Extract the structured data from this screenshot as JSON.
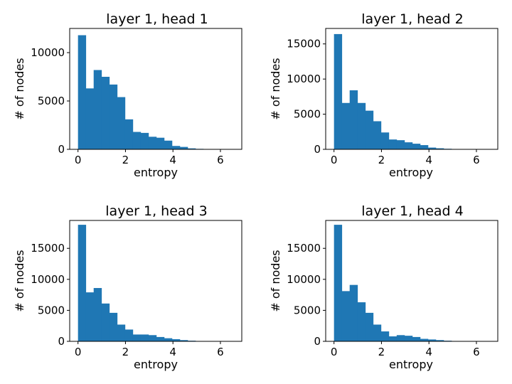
{
  "chart_data": [
    {
      "type": "bar",
      "title": "layer 1, head 1",
      "xlabel": "entropy",
      "ylabel": "# of nodes",
      "xlim": [
        -0.35,
        6.9
      ],
      "ylim": [
        0,
        12500
      ],
      "xticks": [
        0,
        2,
        4,
        6
      ],
      "yticks": [
        0,
        5000,
        10000
      ],
      "grid": false,
      "bin_start": 0.0,
      "bin_width": 0.33,
      "color": "#1f77b4",
      "values": [
        11800,
        6300,
        8200,
        7500,
        6700,
        5400,
        3100,
        1800,
        1700,
        1300,
        1200,
        900,
        350,
        250,
        100,
        50,
        0,
        0,
        0,
        0
      ]
    },
    {
      "type": "bar",
      "title": "layer 1, head 2",
      "xlabel": "entropy",
      "ylabel": "# of nodes",
      "xlim": [
        -0.35,
        6.9
      ],
      "ylim": [
        0,
        17200
      ],
      "xticks": [
        0,
        2,
        4,
        6
      ],
      "yticks": [
        0,
        5000,
        10000,
        15000
      ],
      "grid": false,
      "bin_start": 0.0,
      "bin_width": 0.33,
      "color": "#1f77b4",
      "values": [
        16400,
        6600,
        8400,
        6600,
        5500,
        4000,
        2400,
        1400,
        1300,
        1000,
        800,
        600,
        250,
        150,
        80,
        40,
        0,
        0,
        0,
        0
      ]
    },
    {
      "type": "bar",
      "title": "layer 1, head 3",
      "xlabel": "entropy",
      "ylabel": "# of nodes",
      "xlim": [
        -0.35,
        6.9
      ],
      "ylim": [
        0,
        19500
      ],
      "xticks": [
        0,
        2,
        4,
        6
      ],
      "yticks": [
        0,
        5000,
        10000,
        15000
      ],
      "grid": false,
      "bin_start": 0.0,
      "bin_width": 0.33,
      "color": "#1f77b4",
      "values": [
        18800,
        7900,
        8600,
        6100,
        4600,
        2700,
        1900,
        1100,
        1100,
        1000,
        700,
        500,
        350,
        200,
        100,
        50,
        0,
        0,
        0,
        0
      ]
    },
    {
      "type": "bar",
      "title": "layer 1, head 4",
      "xlabel": "entropy",
      "ylabel": "# of nodes",
      "xlim": [
        -0.35,
        6.9
      ],
      "ylim": [
        0,
        19500
      ],
      "xticks": [
        0,
        2,
        4,
        6
      ],
      "yticks": [
        0,
        5000,
        10000,
        15000
      ],
      "grid": false,
      "bin_start": 0.0,
      "bin_width": 0.33,
      "color": "#1f77b4",
      "values": [
        18800,
        8100,
        9100,
        6300,
        4600,
        2700,
        1600,
        800,
        1000,
        900,
        700,
        400,
        300,
        200,
        100,
        50,
        0,
        0,
        0,
        0
      ]
    }
  ]
}
